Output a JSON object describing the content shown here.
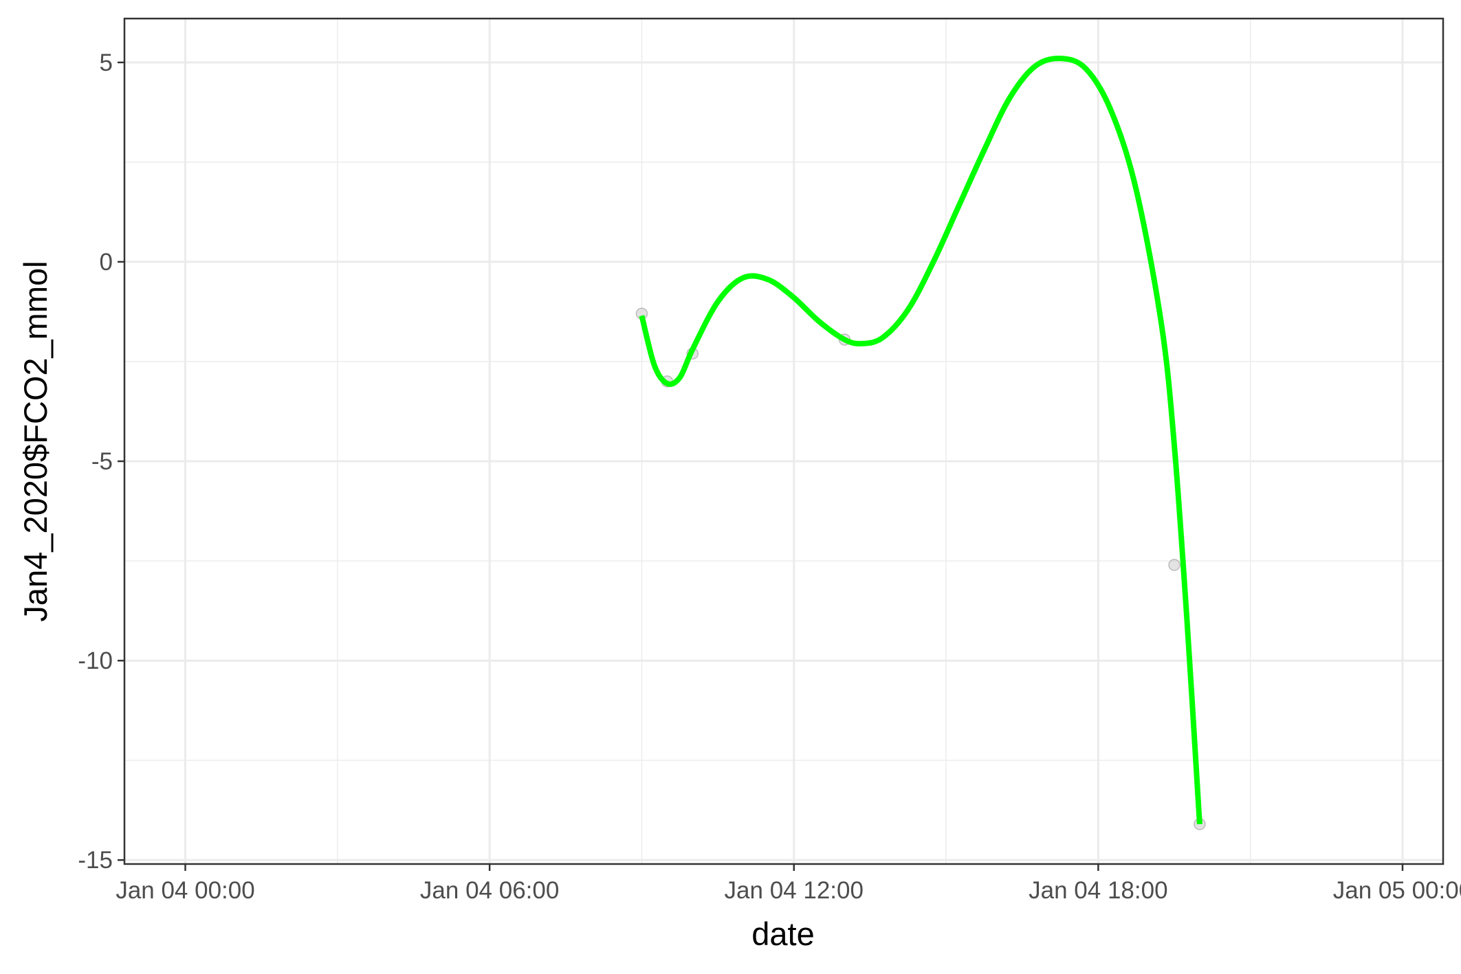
{
  "chart_data": {
    "type": "line",
    "xlabel": "date",
    "ylabel": "Jan4_2020$FCO2_mmol",
    "x_axis_type": "datetime",
    "xlim": [
      "2020-01-03 22:48",
      "2020-01-05 00:48"
    ],
    "ylim": [
      -15.1,
      6.1
    ],
    "x_ticks": [
      {
        "value": "2020-01-04 00:00",
        "label": "Jan 04 00:00"
      },
      {
        "value": "2020-01-04 06:00",
        "label": "Jan 04 06:00"
      },
      {
        "value": "2020-01-04 12:00",
        "label": "Jan 04 12:00"
      },
      {
        "value": "2020-01-04 18:00",
        "label": "Jan 04 18:00"
      },
      {
        "value": "2020-01-05 00:00",
        "label": "Jan 05 00:00"
      }
    ],
    "y_ticks": [
      {
        "value": 5,
        "label": "5"
      },
      {
        "value": 0,
        "label": "0"
      },
      {
        "value": -5,
        "label": "-5"
      },
      {
        "value": -10,
        "label": "-10"
      },
      {
        "value": -15,
        "label": "-15"
      }
    ],
    "grid": true,
    "points": {
      "color": "#cccccc",
      "x": [
        "2020-01-04 09:00",
        "2020-01-04 09:30",
        "2020-01-04 10:00",
        "2020-01-04 13:00",
        "2020-01-04 19:30",
        "2020-01-04 20:00"
      ],
      "y": [
        -1.3,
        -3.0,
        -2.3,
        -1.95,
        -7.6,
        -14.1
      ]
    },
    "series": [
      {
        "color": "#00ff00",
        "x": [
          "2020-01-04 09:00",
          "2020-01-04 09:15",
          "2020-01-04 09:30",
          "2020-01-04 09:45",
          "2020-01-04 10:00",
          "2020-01-04 10:30",
          "2020-01-04 11:00",
          "2020-01-04 11:30",
          "2020-01-04 12:00",
          "2020-01-04 12:30",
          "2020-01-04 13:00",
          "2020-01-04 13:20",
          "2020-01-04 13:45",
          "2020-01-04 14:15",
          "2020-01-04 14:45",
          "2020-01-04 15:15",
          "2020-01-04 15:45",
          "2020-01-04 16:15",
          "2020-01-04 16:45",
          "2020-01-04 17:15",
          "2020-01-04 17:45",
          "2020-01-04 18:15",
          "2020-01-04 18:45",
          "2020-01-04 19:15",
          "2020-01-04 19:30",
          "2020-01-04 19:45",
          "2020-01-04 20:00"
        ],
        "y": [
          -1.35,
          -2.6,
          -3.05,
          -2.9,
          -2.2,
          -1.0,
          -0.4,
          -0.45,
          -0.9,
          -1.5,
          -1.95,
          -2.05,
          -1.9,
          -1.2,
          0.0,
          1.4,
          2.8,
          4.1,
          4.9,
          5.1,
          4.85,
          3.8,
          1.8,
          -1.6,
          -4.6,
          -9.0,
          -14.1
        ]
      }
    ]
  }
}
